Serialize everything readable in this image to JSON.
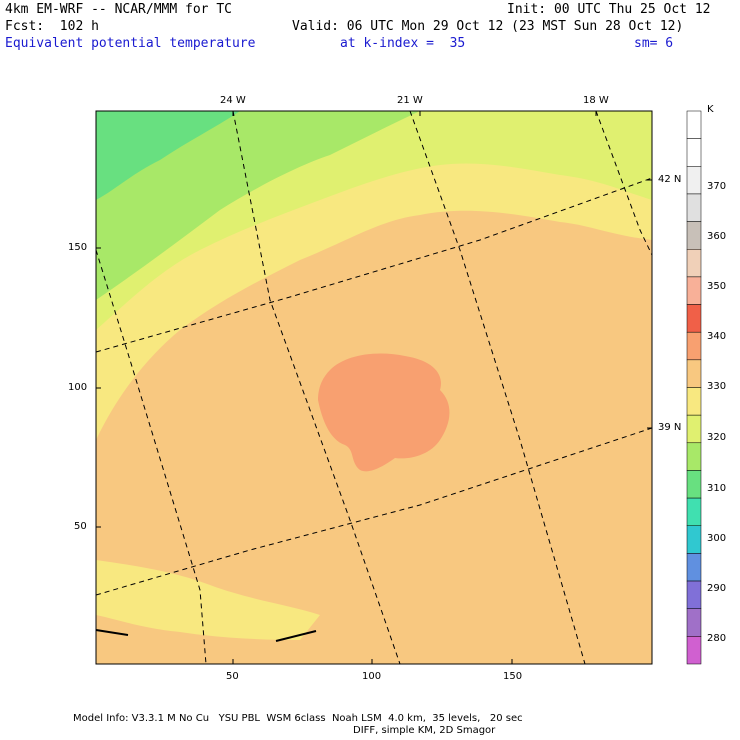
{
  "header": {
    "model": "4km EM-WRF -- NCAR/MMM for TC",
    "init": "Init: 00 UTC Thu 25 Oct 12",
    "fcst": "Fcst:  102 h",
    "valid": "Valid: 06 UTC Mon 29 Oct 12 (23 MST Sun 28 Oct 12)",
    "field": "Equivalent potential temperature",
    "level": "at k-index =  35",
    "smooth": "sm= 6"
  },
  "map": {
    "top_labels": [
      "24 W",
      "21 W",
      "18 W"
    ],
    "right_labels": [
      "42 N",
      "39 N"
    ],
    "x_ticks": [
      "50",
      "100",
      "150"
    ],
    "y_ticks": [
      "150",
      "100",
      "50"
    ]
  },
  "colorbar": {
    "unit": "K",
    "labels": [
      "370",
      "360",
      "350",
      "340",
      "330",
      "320",
      "310",
      "300",
      "290",
      "280"
    ],
    "colors": [
      "#ffffff",
      "#ffffff",
      "#f0f0f0",
      "#e0e0e0",
      "#c8c0b8",
      "#f0d0b8",
      "#f8b098",
      "#f06048",
      "#f8a070",
      "#f8c880",
      "#f8e880",
      "#e0f070",
      "#a8e868",
      "#68e080",
      "#40e0b0",
      "#30c8d0",
      "#6090e0",
      "#8070d8",
      "#a070c8",
      "#d060d0"
    ]
  },
  "footer": {
    "line1": "Model Info: V3.3.1 M No Cu   YSU PBL  WSM 6class  Noah LSM  4.0 km,  35 levels,   20 sec",
    "line2": "DIFF, simple KM, 2D Smagor"
  }
}
